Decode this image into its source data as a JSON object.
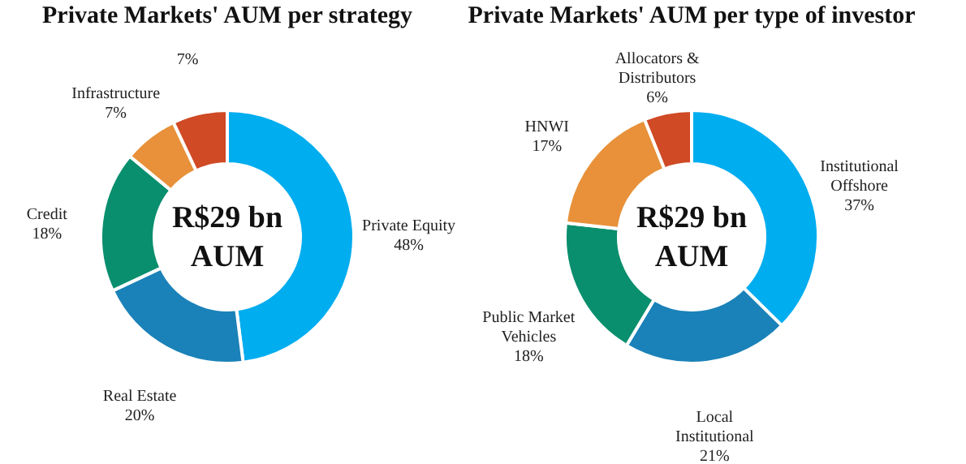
{
  "chart_data": [
    {
      "type": "donut",
      "title": "Private Markets' AUM per strategy",
      "categories": [
        "Private Equity",
        "Real Estate",
        "Credit",
        "Infrastructure",
        null
      ],
      "values": [
        48,
        20,
        18,
        7,
        7
      ],
      "value_labels": [
        "48%",
        "20%",
        "18%",
        "7%",
        "7%"
      ],
      "colors": [
        "#00adef",
        "#1a82b8",
        "#0a8f6e",
        "#e8913a",
        "#cf4a25"
      ],
      "annotations": [
        "R$29 bn",
        "AUM"
      ],
      "legend": false
    },
    {
      "type": "donut",
      "title": "Private Markets' AUM per type of investor",
      "categories": [
        "Institutional Offshore",
        "Local Institutional",
        "Public Market Vehicles",
        "HNWI",
        "Allocators & Distributors"
      ],
      "values": [
        37,
        21,
        18,
        17,
        6
      ],
      "value_labels": [
        "37%",
        "21%",
        "18%",
        "17%",
        "6%"
      ],
      "colors": [
        "#00adef",
        "#1a82b8",
        "#0a8f6e",
        "#e8913a",
        "#cf4a25"
      ],
      "annotations": [
        "R$29 bn",
        "AUM"
      ],
      "legend": false
    }
  ]
}
